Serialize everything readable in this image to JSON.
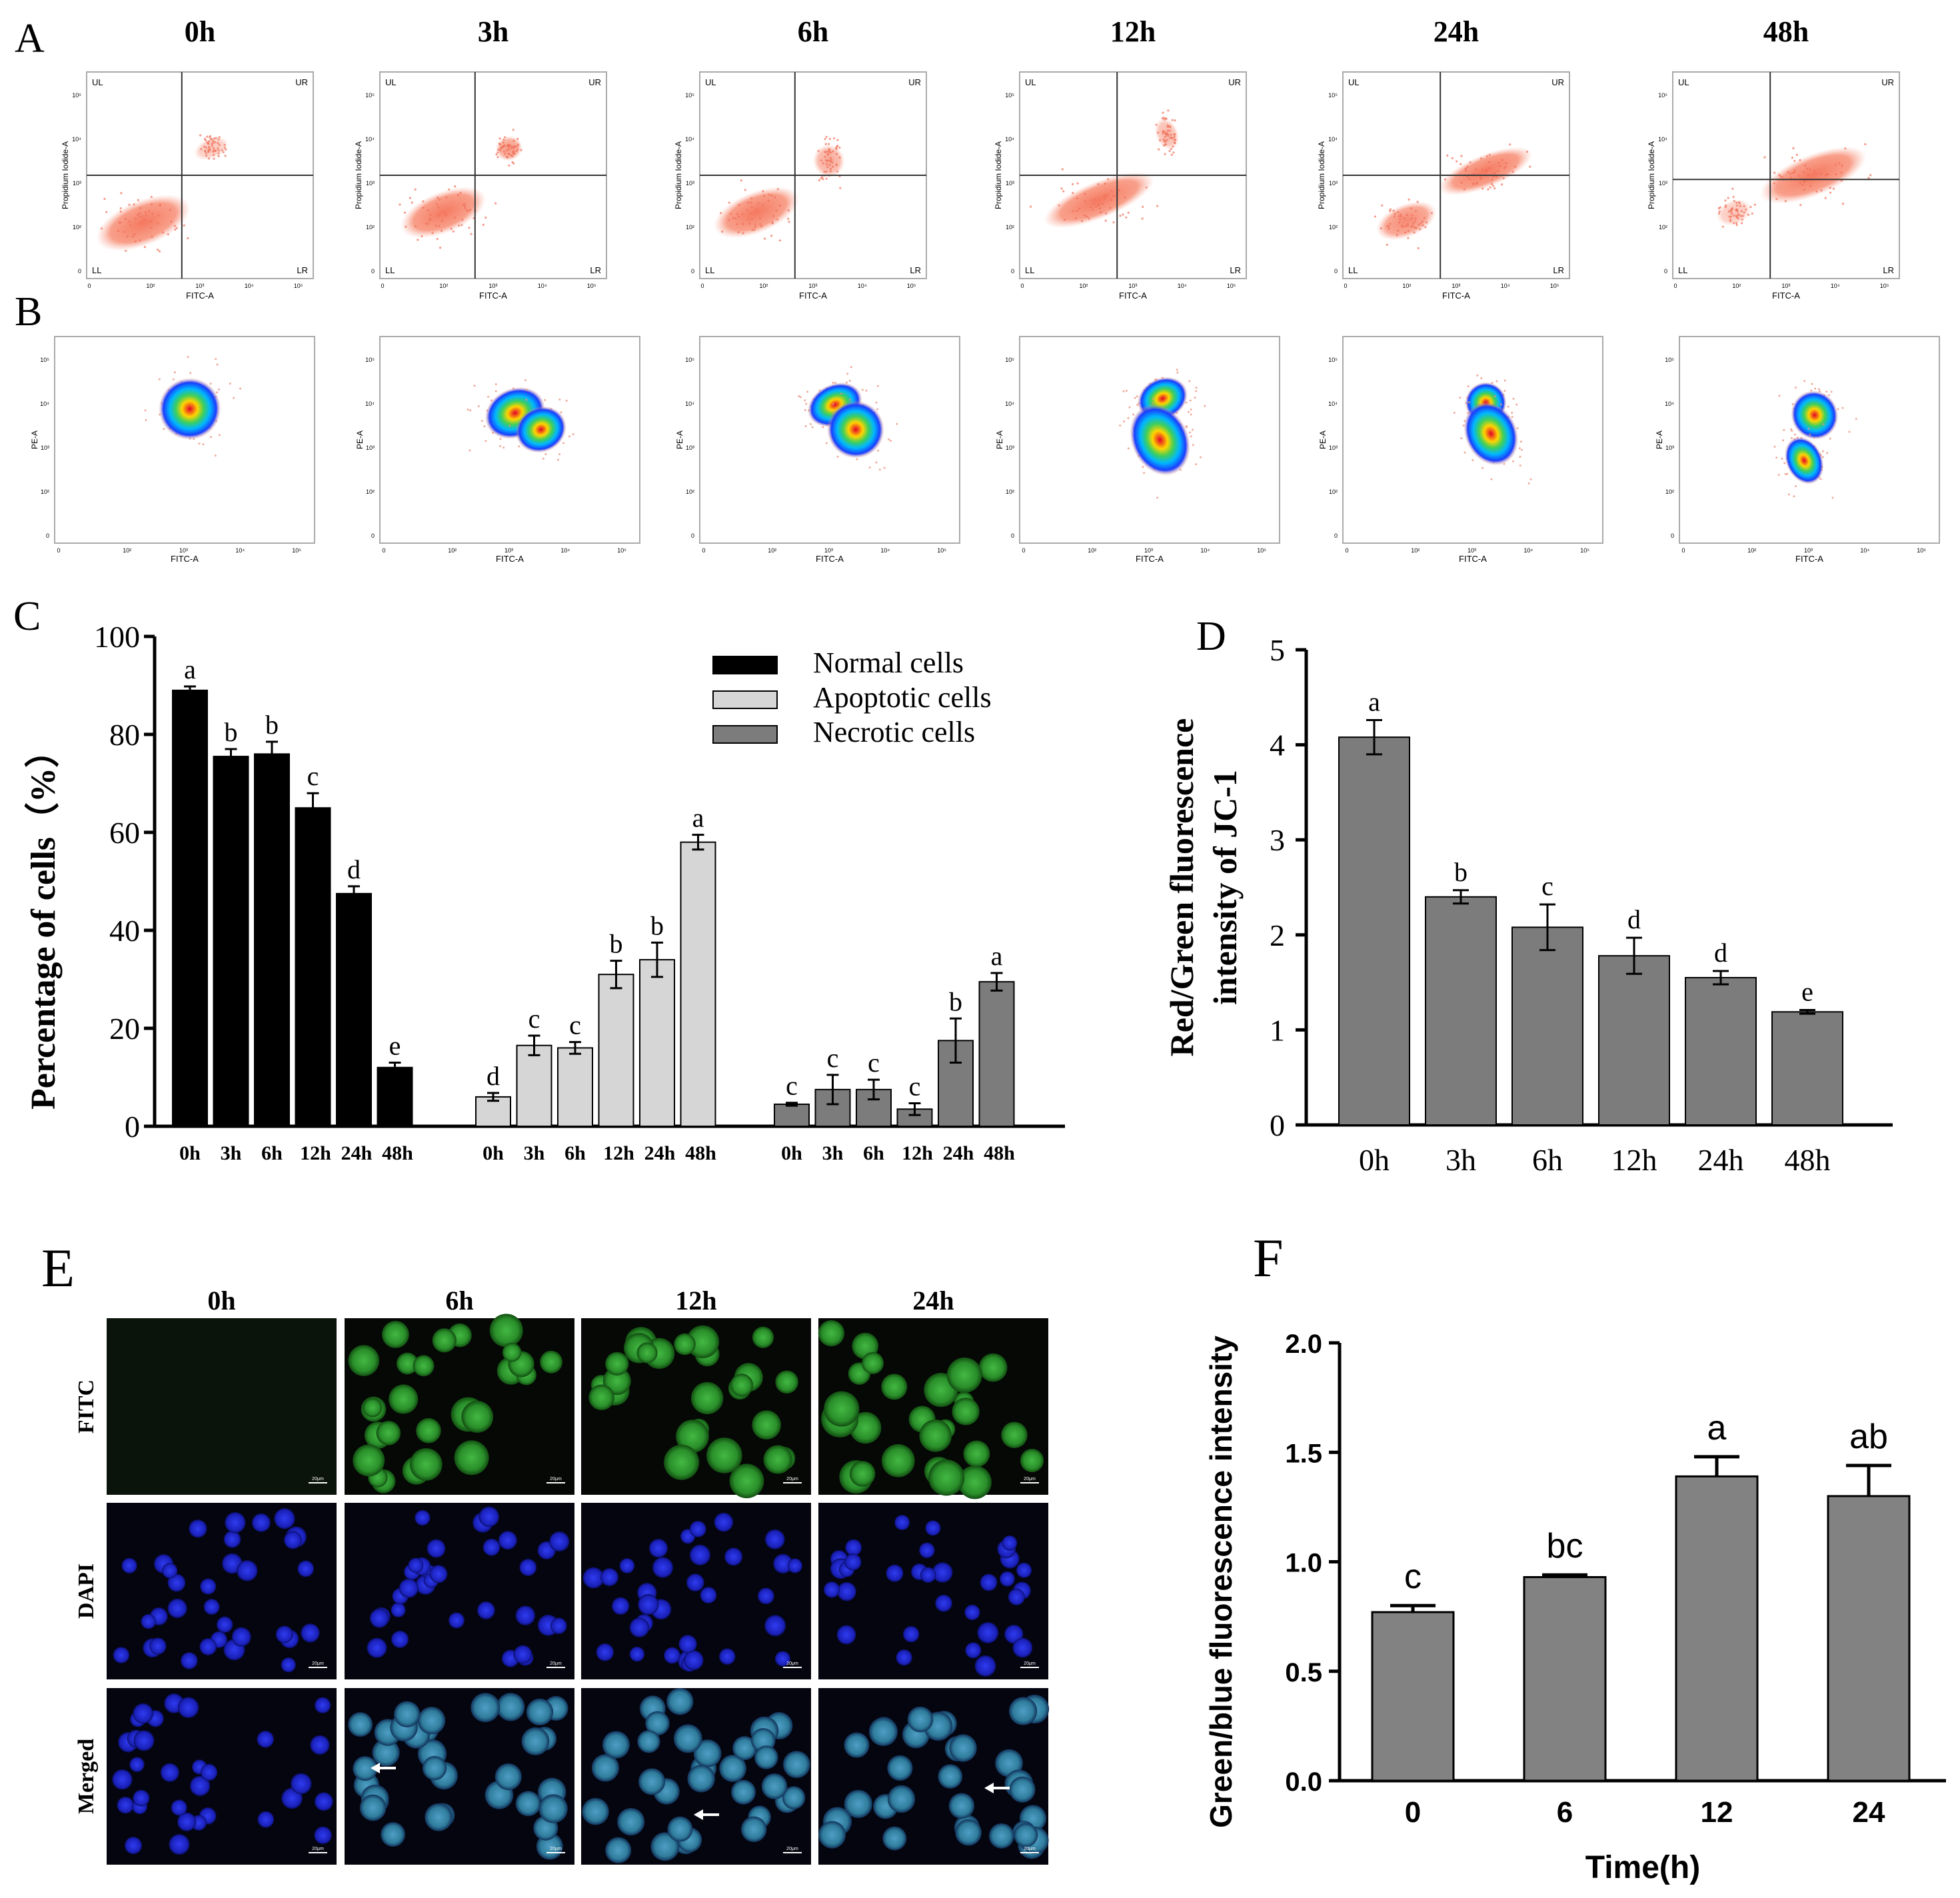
{
  "panel_letters": [
    "A",
    "B",
    "C",
    "D",
    "E",
    "F"
  ],
  "panelA": {
    "times": [
      "0h",
      "3h",
      "6h",
      "12h",
      "24h",
      "48h"
    ],
    "quadrants": [
      "UL",
      "UR",
      "LL",
      "LR"
    ],
    "ylabel": "Propidium Iodide-A",
    "xlabel": "FITC-A",
    "ticks": [
      "0",
      "10²",
      "10³",
      "10⁴",
      "10⁵"
    ]
  },
  "panelB": {
    "ylabel": "PE-A",
    "xlabel": "FITC-A",
    "ticks": [
      "0",
      "10²",
      "10³",
      "10⁴",
      "10⁵"
    ]
  },
  "panelE": {
    "times": [
      "0h",
      "6h",
      "12h",
      "24h"
    ],
    "rows": [
      "FITC",
      "DAPI",
      "Merged"
    ],
    "scale_label": "20μm"
  },
  "chart_data": [
    {
      "id": "C",
      "type": "bar",
      "ylabel": "Percentage of cells（%）",
      "ylim": [
        0,
        100
      ],
      "yticks": [
        0,
        20,
        40,
        60,
        80,
        100
      ],
      "categories": [
        "0h",
        "3h",
        "6h",
        "12h",
        "24h",
        "48h"
      ],
      "series": [
        {
          "name": "Normal cells",
          "color": "#000000",
          "values": [
            89,
            75.5,
            76,
            65,
            47.5,
            12
          ],
          "errors": [
            0.8,
            1.5,
            2.5,
            3,
            1.5,
            1
          ],
          "letters": [
            "a",
            "b",
            "b",
            "c",
            "d",
            "e"
          ]
        },
        {
          "name": "Apoptotic cells",
          "color": "#d6d6d6",
          "values": [
            6,
            16.5,
            16,
            31,
            34,
            58
          ],
          "errors": [
            0.8,
            2,
            1.2,
            2.8,
            3.5,
            1.5
          ],
          "letters": [
            "d",
            "c",
            "c",
            "b",
            "b",
            "a"
          ]
        },
        {
          "name": "Necrotic cells",
          "color": "#7c7c7c",
          "values": [
            4.5,
            7.5,
            7.5,
            3.5,
            17.5,
            29.5
          ],
          "errors": [
            0.3,
            3,
            2,
            1.2,
            4.5,
            1.8
          ],
          "letters": [
            "c",
            "c",
            "c",
            "c",
            "b",
            "a"
          ]
        }
      ]
    },
    {
      "id": "D",
      "type": "bar",
      "ylabel_line1": "Red/Green fluorescence",
      "ylabel_line2": "intensity of JC-1",
      "ylim": [
        0,
        5
      ],
      "yticks": [
        0,
        1,
        2,
        3,
        4,
        5
      ],
      "categories": [
        "0h",
        "3h",
        "6h",
        "12h",
        "24h",
        "48h"
      ],
      "values": [
        4.08,
        2.4,
        2.08,
        1.78,
        1.55,
        1.19
      ],
      "errors": [
        0.18,
        0.07,
        0.24,
        0.19,
        0.07,
        0.02
      ],
      "letters": [
        "a",
        "b",
        "c",
        "d",
        "d",
        "e"
      ],
      "color": "#7c7c7c"
    },
    {
      "id": "F",
      "type": "bar",
      "ylabel": "Green/blue fluorescence intensity",
      "xlabel": "Time(h)",
      "ylim": [
        0,
        2.0
      ],
      "yticks": [
        "0.0",
        "0.5",
        "1.0",
        "1.5",
        "2.0"
      ],
      "categories": [
        "0",
        "6",
        "12",
        "24"
      ],
      "values": [
        0.77,
        0.93,
        1.39,
        1.3
      ],
      "errors": [
        0.03,
        0.01,
        0.09,
        0.14
      ],
      "letters": [
        "c",
        "bc",
        "a",
        "ab"
      ],
      "color": "#828282"
    }
  ]
}
